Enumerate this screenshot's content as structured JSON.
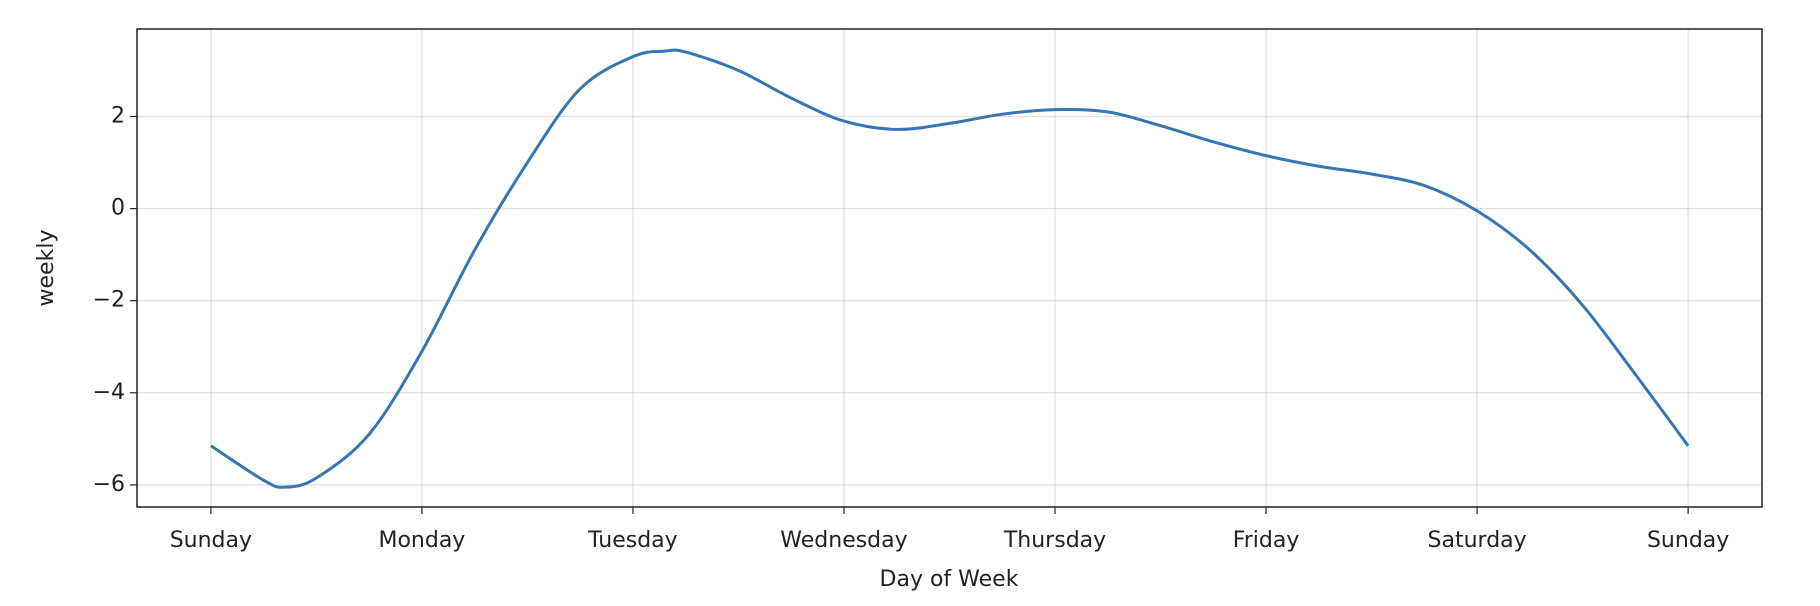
{
  "chart_data": {
    "type": "line",
    "x_label": "Day of Week",
    "y_label": "weekly",
    "x": [
      0,
      0.25,
      0.35,
      0.5,
      0.75,
      1,
      1.25,
      1.5,
      1.75,
      2,
      2.15,
      2.25,
      2.5,
      2.75,
      3,
      3.25,
      3.5,
      3.75,
      4,
      4.25,
      4.5,
      4.75,
      5,
      5.25,
      5.5,
      5.75,
      6,
      6.25,
      6.5,
      6.75,
      7
    ],
    "series": [
      {
        "name": "weekly",
        "color": "#3776b4",
        "values": [
          -5.15,
          -5.9,
          -6.05,
          -5.85,
          -4.9,
          -3.1,
          -0.9,
          1.0,
          2.6,
          3.3,
          3.42,
          3.4,
          3.0,
          2.4,
          1.9,
          1.72,
          1.85,
          2.05,
          2.15,
          2.1,
          1.8,
          1.45,
          1.15,
          0.92,
          0.75,
          0.5,
          -0.05,
          -0.9,
          -2.1,
          -3.6,
          -5.15
        ]
      }
    ],
    "xlim": [
      -0.35,
      7.35
    ],
    "xticks": [
      {
        "value": 0,
        "label": "Sunday"
      },
      {
        "value": 1,
        "label": "Monday"
      },
      {
        "value": 2,
        "label": "Tuesday"
      },
      {
        "value": 3,
        "label": "Wednesday"
      },
      {
        "value": 4,
        "label": "Thursday"
      },
      {
        "value": 5,
        "label": "Friday"
      },
      {
        "value": 6,
        "label": "Saturday"
      },
      {
        "value": 7,
        "label": "Sunday"
      }
    ],
    "ylim": [
      -6.48,
      3.9
    ],
    "yticks": [
      {
        "value": -6,
        "label": "−6"
      },
      {
        "value": -4,
        "label": "−4"
      },
      {
        "value": -2,
        "label": "−2"
      },
      0,
      2
    ],
    "grid": true
  }
}
